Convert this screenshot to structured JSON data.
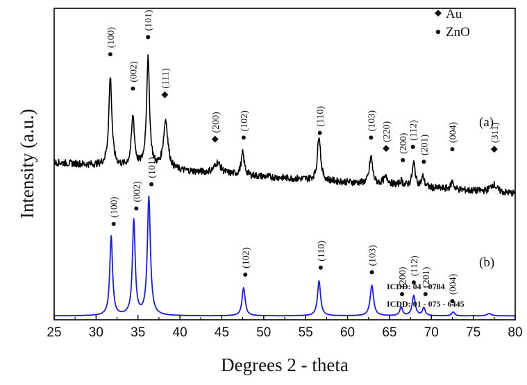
{
  "chart_data": {
    "type": "line",
    "xlabel": "Degrees 2 - theta",
    "ylabel": "Intensity (a.u.)",
    "xlim": [
      25,
      80
    ],
    "xticks": [
      "25",
      "30",
      "35",
      "40",
      "45",
      "50",
      "55",
      "60",
      "65",
      "70",
      "75",
      "80"
    ],
    "grid": false,
    "legend": {
      "placement": "top-right",
      "entries": [
        {
          "marker": "diamond",
          "label": "Au"
        },
        {
          "marker": "circle",
          "label": "ZnO"
        }
      ]
    },
    "references": [
      "ICDD: 04 - 0784",
      "ICDD: 01 - 075 - 6445"
    ],
    "series": [
      {
        "trace_label": "(a)",
        "color": "#1a1aff",
        "baseline": 0.5,
        "noise": 0.02,
        "peaks": [
          {
            "x": 31.8,
            "height": 10.2,
            "width": 0.2
          },
          {
            "x": 34.5,
            "height": 12.2,
            "width": 0.2
          },
          {
            "x": 36.3,
            "height": 15.2,
            "width": 0.22
          },
          {
            "x": 47.6,
            "height": 3.6,
            "width": 0.22
          },
          {
            "x": 56.6,
            "height": 4.5,
            "width": 0.22
          },
          {
            "x": 62.9,
            "height": 3.9,
            "width": 0.24
          },
          {
            "x": 66.4,
            "height": 1.1,
            "width": 0.2
          },
          {
            "x": 67.9,
            "height": 2.6,
            "width": 0.22
          },
          {
            "x": 69.1,
            "height": 1.0,
            "width": 0.2
          },
          {
            "x": 72.6,
            "height": 0.5,
            "width": 0.2
          },
          {
            "x": 76.9,
            "height": 0.3,
            "width": 0.3
          }
        ],
        "annotations": [
          {
            "x": 32.1,
            "label": "(100)",
            "phase": "ZnO",
            "y": 12.3
          },
          {
            "x": 34.8,
            "label": "(002)",
            "phase": "ZnO",
            "y": 14.3
          },
          {
            "x": 36.6,
            "label": "(101)",
            "phase": "ZnO",
            "y": 17.4
          },
          {
            "x": 47.8,
            "label": "(102)",
            "phase": "ZnO",
            "y": 5.8
          },
          {
            "x": 56.8,
            "label": "(110)",
            "phase": "ZnO",
            "y": 6.7
          },
          {
            "x": 62.9,
            "label": "(103)",
            "phase": "ZnO",
            "y": 6.1
          },
          {
            "x": 66.5,
            "label": "(200)",
            "phase": "ZnO",
            "y": 3.3
          },
          {
            "x": 67.9,
            "label": "(112)",
            "phase": "ZnO",
            "y": 4.8
          },
          {
            "x": 69.3,
            "label": "(201)",
            "phase": "ZnO",
            "y": 3.3
          },
          {
            "x": 72.5,
            "label": "(004)",
            "phase": "ZnO",
            "y": 2.4
          }
        ]
      },
      {
        "trace_label": "(b)",
        "color": "#000000",
        "baseline_start": 20.2,
        "baseline_end": 16.2,
        "noise": 0.45,
        "peaks": [
          {
            "x": 31.7,
            "height": 11.5,
            "width": 0.22
          },
          {
            "x": 34.4,
            "height": 6.5,
            "width": 0.22
          },
          {
            "x": 36.2,
            "height": 14.0,
            "width": 0.22
          },
          {
            "x": 38.3,
            "height": 6.3,
            "width": 0.32
          },
          {
            "x": 44.5,
            "height": 1.4,
            "width": 0.45
          },
          {
            "x": 47.5,
            "height": 2.8,
            "width": 0.22
          },
          {
            "x": 56.6,
            "height": 5.9,
            "width": 0.22
          },
          {
            "x": 62.8,
            "height": 3.5,
            "width": 0.22
          },
          {
            "x": 64.6,
            "height": 0.9,
            "width": 0.4
          },
          {
            "x": 66.4,
            "height": 0.6,
            "width": 0.2
          },
          {
            "x": 67.9,
            "height": 3.0,
            "width": 0.22
          },
          {
            "x": 69.0,
            "height": 1.3,
            "width": 0.2
          },
          {
            "x": 72.5,
            "height": 1.0,
            "width": 0.2
          },
          {
            "x": 77.4,
            "height": 1.0,
            "width": 0.45
          }
        ],
        "annotations": [
          {
            "x": 31.7,
            "label": "(100)",
            "phase": "ZnO",
            "y": 34.1
          },
          {
            "x": 34.4,
            "label": "(002)",
            "phase": "ZnO",
            "y": 29.7
          },
          {
            "x": 36.2,
            "label": "(101)",
            "phase": "ZnO",
            "y": 36.3
          },
          {
            "x": 38.2,
            "label": "(111)",
            "phase": "Au",
            "y": 28.9
          },
          {
            "x": 44.2,
            "label": "(200)",
            "phase": "Au",
            "y": 23.2
          },
          {
            "x": 47.6,
            "label": "(102)",
            "phase": "ZnO",
            "y": 23.4
          },
          {
            "x": 56.7,
            "label": "(110)",
            "phase": "ZnO",
            "y": 24.0
          },
          {
            "x": 62.8,
            "label": "(103)",
            "phase": "ZnO",
            "y": 23.4
          },
          {
            "x": 64.6,
            "label": "(220)",
            "phase": "Au",
            "y": 22.0
          },
          {
            "x": 66.6,
            "label": "(200)",
            "phase": "ZnO",
            "y": 20.5
          },
          {
            "x": 67.8,
            "label": "(112)",
            "phase": "ZnO",
            "y": 22.2
          },
          {
            "x": 69.1,
            "label": "(201)",
            "phase": "ZnO",
            "y": 20.3
          },
          {
            "x": 72.5,
            "label": "(004)",
            "phase": "ZnO",
            "y": 21.9
          },
          {
            "x": 77.5,
            "label": "(311)",
            "phase": "Au",
            "y": 21.9
          }
        ]
      }
    ]
  }
}
